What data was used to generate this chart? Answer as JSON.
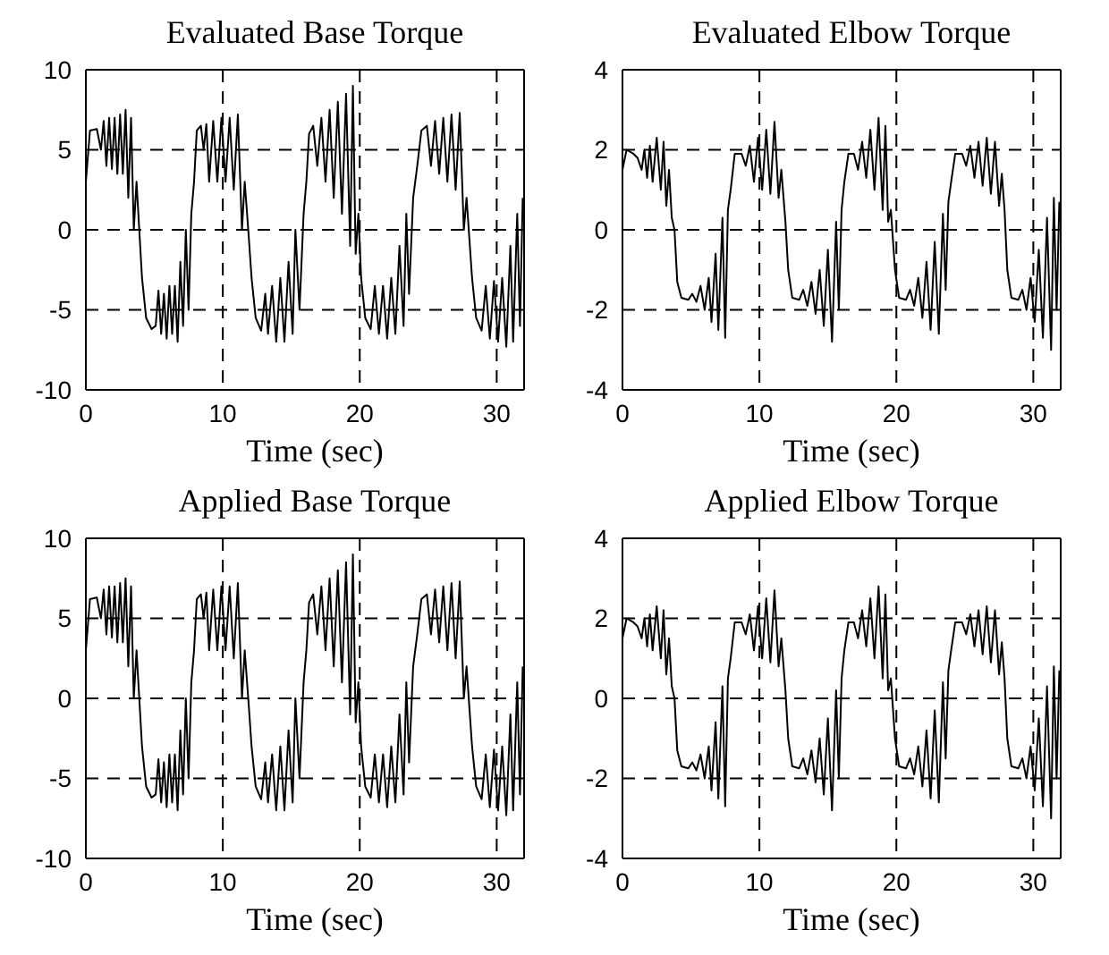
{
  "chart_data": [
    {
      "type": "line",
      "title": "Evaluated Base Torque",
      "xlabel": "Time (sec)",
      "color": "#000000",
      "marker": "none",
      "line_style": "solid",
      "grid": true,
      "xlim": [
        0,
        32
      ],
      "xticks": [
        0,
        10,
        20,
        30
      ],
      "ylim": [
        -10,
        10
      ],
      "yticks": [
        -10,
        -5,
        0,
        5,
        10
      ],
      "x": [
        0,
        0.3,
        0.8,
        1.1,
        1.3,
        1.5,
        1.7,
        1.9,
        2.1,
        2.3,
        2.5,
        2.7,
        2.9,
        3.1,
        3.3,
        3.5,
        3.7,
        3.9,
        4.1,
        4.4,
        4.8,
        5.1,
        5.3,
        5.5,
        5.7,
        5.9,
        6.1,
        6.3,
        6.5,
        6.7,
        6.9,
        7.1,
        7.3,
        7.5,
        7.7,
        7.9,
        8.1,
        8.4,
        8.6,
        8.8,
        9.0,
        9.3,
        9.6,
        9.9,
        10.2,
        10.5,
        10.8,
        11.1,
        11.4,
        11.6,
        11.9,
        12.1,
        12.4,
        12.8,
        13.1,
        13.3,
        13.6,
        13.9,
        14.2,
        14.5,
        14.8,
        15.1,
        15.3,
        15.6,
        15.9,
        16.1,
        16.3,
        16.6,
        16.9,
        17.2,
        17.5,
        17.8,
        18.1,
        18.4,
        18.7,
        19.0,
        19.3,
        19.5,
        19.7,
        19.9,
        20.1,
        20.4,
        20.8,
        21.1,
        21.4,
        21.7,
        22.0,
        22.3,
        22.6,
        22.9,
        23.2,
        23.4,
        23.6,
        23.9,
        24.2,
        24.5,
        24.9,
        25.2,
        25.5,
        25.8,
        26.1,
        26.4,
        26.7,
        27.0,
        27.3,
        27.6,
        27.8,
        28.0,
        28.2,
        28.5,
        28.9,
        29.2,
        29.5,
        29.8,
        30.1,
        30.4,
        30.7,
        31.0,
        31.2,
        31.5,
        31.7,
        31.9
      ],
      "values": [
        3,
        6.2,
        6.3,
        5,
        6.8,
        4,
        7,
        3.8,
        7,
        3.5,
        7.2,
        3.5,
        7.5,
        2,
        7,
        0,
        3,
        0,
        -3,
        -5.5,
        -6.2,
        -6,
        -3.8,
        -6.5,
        -4,
        -6.8,
        -3.5,
        -6.5,
        -3.5,
        -7,
        -2,
        -6,
        0,
        -5,
        1,
        3,
        6.2,
        6.5,
        5,
        6.6,
        3,
        6.8,
        3,
        7,
        3,
        7,
        2.5,
        7.2,
        0,
        3,
        -0.5,
        -3,
        -5.5,
        -6.3,
        -4,
        -6.5,
        -3.5,
        -7,
        -3,
        -7,
        -2,
        -6.5,
        0,
        -5,
        1,
        3,
        6,
        6.5,
        4,
        7,
        3,
        7.5,
        2,
        8,
        1,
        8.5,
        -1,
        9,
        -1.5,
        1,
        -3,
        -5.5,
        -6.2,
        -3.5,
        -6.5,
        -3.5,
        -6.8,
        -3,
        -6.5,
        -1,
        -6,
        1,
        -4,
        2,
        4,
        6.2,
        6.5,
        4,
        6.8,
        3.5,
        7,
        3,
        7.2,
        2.5,
        7.3,
        0,
        2,
        -0.5,
        -3,
        -5.5,
        -6.3,
        -3.5,
        -6.8,
        -3.2,
        -7,
        -3,
        -7.3,
        -1,
        -7,
        1,
        -6,
        2
      ]
    },
    {
      "type": "line",
      "title": "Evaluated Elbow Torque",
      "xlabel": "Time (sec)",
      "color": "#000000",
      "marker": "none",
      "line_style": "solid",
      "grid": true,
      "xlim": [
        0,
        32
      ],
      "xticks": [
        0,
        10,
        20,
        30
      ],
      "ylim": [
        -4,
        4
      ],
      "yticks": [
        -4,
        -2,
        0,
        2,
        4
      ],
      "x": [
        0,
        0.3,
        0.8,
        1.1,
        1.4,
        1.6,
        1.8,
        2.0,
        2.2,
        2.5,
        2.8,
        3.0,
        3.2,
        3.4,
        3.6,
        3.8,
        4.0,
        4.3,
        4.8,
        5.1,
        5.4,
        5.7,
        6.0,
        6.3,
        6.5,
        6.8,
        7.0,
        7.3,
        7.5,
        7.7,
        7.9,
        8.2,
        8.7,
        9.0,
        9.3,
        9.6,
        9.9,
        10.2,
        10.5,
        10.8,
        11.1,
        11.4,
        11.6,
        11.9,
        12.1,
        12.4,
        12.9,
        13.2,
        13.5,
        13.8,
        14.1,
        14.4,
        14.7,
        15.0,
        15.3,
        15.6,
        15.8,
        16.0,
        16.2,
        16.5,
        16.9,
        17.2,
        17.5,
        17.8,
        18.1,
        18.4,
        18.7,
        19.0,
        19.2,
        19.4,
        19.6,
        19.9,
        20.2,
        20.7,
        21.0,
        21.3,
        21.6,
        21.9,
        22.2,
        22.5,
        22.8,
        23.1,
        23.4,
        23.6,
        23.8,
        24.0,
        24.3,
        24.8,
        25.1,
        25.4,
        25.7,
        26.0,
        26.3,
        26.6,
        26.9,
        27.2,
        27.5,
        27.7,
        27.9,
        28.1,
        28.4,
        28.9,
        29.2,
        29.5,
        29.8,
        30.1,
        30.4,
        30.7,
        31.0,
        31.3,
        31.5,
        31.7,
        31.9
      ],
      "values": [
        1.5,
        2,
        1.9,
        1.8,
        1.5,
        2,
        1.3,
        2.1,
        1.2,
        2.3,
        1.0,
        2.2,
        0.6,
        1.5,
        0.3,
        0,
        -1.3,
        -1.7,
        -1.75,
        -1.6,
        -1.8,
        -1.4,
        -2,
        -1.2,
        -2.3,
        -0.6,
        -2.5,
        0.3,
        -2.7,
        0.5,
        1.0,
        1.9,
        1.9,
        1.6,
        2.1,
        1.2,
        2.3,
        1.0,
        2.5,
        0.9,
        2.7,
        0.8,
        1.5,
        0.2,
        -1,
        -1.7,
        -1.75,
        -1.5,
        -1.9,
        -1.3,
        -2.1,
        -1,
        -2.4,
        -0.5,
        -2.8,
        0.2,
        -2,
        0.5,
        1.2,
        1.9,
        1.9,
        1.5,
        2.2,
        1.3,
        2.5,
        1.0,
        2.8,
        0.5,
        2.6,
        0.2,
        0.5,
        -1,
        -1.7,
        -1.75,
        -1.5,
        -1.9,
        -1.2,
        -2.2,
        -0.8,
        -2.5,
        -0.3,
        -2.6,
        0.4,
        -1.5,
        0.7,
        1.2,
        1.9,
        1.9,
        1.6,
        2.1,
        1.3,
        2.2,
        1.1,
        2.3,
        0.9,
        2.2,
        0.6,
        1.4,
        0.5,
        -1,
        -1.7,
        -1.75,
        -1.5,
        -2,
        -1.2,
        -2.3,
        -0.5,
        -2.7,
        0.3,
        -3,
        0.8,
        -2,
        0.7
      ]
    },
    {
      "type": "line",
      "title": "Applied Base Torque",
      "xlabel": "Time (sec)",
      "color": "#000000",
      "marker": "none",
      "line_style": "solid",
      "grid": true,
      "xlim": [
        0,
        32
      ],
      "xticks": [
        0,
        10,
        20,
        30
      ],
      "ylim": [
        -10,
        10
      ],
      "yticks": [
        -10,
        -5,
        0,
        5,
        10
      ],
      "x": [
        0,
        0.3,
        0.8,
        1.1,
        1.3,
        1.5,
        1.7,
        1.9,
        2.1,
        2.3,
        2.5,
        2.7,
        2.9,
        3.1,
        3.3,
        3.5,
        3.7,
        3.9,
        4.1,
        4.4,
        4.8,
        5.1,
        5.3,
        5.5,
        5.7,
        5.9,
        6.1,
        6.3,
        6.5,
        6.7,
        6.9,
        7.1,
        7.3,
        7.5,
        7.7,
        7.9,
        8.1,
        8.4,
        8.6,
        8.8,
        9.0,
        9.3,
        9.6,
        9.9,
        10.2,
        10.5,
        10.8,
        11.1,
        11.4,
        11.6,
        11.9,
        12.1,
        12.4,
        12.8,
        13.1,
        13.3,
        13.6,
        13.9,
        14.2,
        14.5,
        14.8,
        15.1,
        15.3,
        15.6,
        15.9,
        16.1,
        16.3,
        16.6,
        16.9,
        17.2,
        17.5,
        17.8,
        18.1,
        18.4,
        18.7,
        19.0,
        19.3,
        19.5,
        19.7,
        19.9,
        20.1,
        20.4,
        20.8,
        21.1,
        21.4,
        21.7,
        22.0,
        22.3,
        22.6,
        22.9,
        23.2,
        23.4,
        23.6,
        23.9,
        24.2,
        24.5,
        24.9,
        25.2,
        25.5,
        25.8,
        26.1,
        26.4,
        26.7,
        27.0,
        27.3,
        27.6,
        27.8,
        28.0,
        28.2,
        28.5,
        28.9,
        29.2,
        29.5,
        29.8,
        30.1,
        30.4,
        30.7,
        31.0,
        31.2,
        31.5,
        31.7,
        31.9
      ],
      "values": [
        3,
        6.2,
        6.3,
        5,
        6.8,
        4,
        7,
        3.8,
        7,
        3.5,
        7.2,
        3.5,
        7.5,
        2,
        7,
        0,
        3,
        0,
        -3,
        -5.5,
        -6.2,
        -6,
        -3.8,
        -6.5,
        -4,
        -6.8,
        -3.5,
        -6.5,
        -3.5,
        -7,
        -2,
        -6,
        0,
        -5,
        1,
        3,
        6.2,
        6.5,
        5,
        6.6,
        3,
        6.8,
        3,
        7,
        3,
        7,
        2.5,
        7.2,
        0,
        3,
        -0.5,
        -3,
        -5.5,
        -6.3,
        -4,
        -6.5,
        -3.5,
        -7,
        -3,
        -7,
        -2,
        -6.5,
        0,
        -5,
        1,
        3,
        6,
        6.5,
        4,
        7,
        3,
        7.5,
        2,
        8,
        1,
        8.5,
        -1,
        9,
        -1.5,
        1,
        -3,
        -5.5,
        -6.2,
        -3.5,
        -6.5,
        -3.5,
        -6.8,
        -3,
        -6.5,
        -1,
        -6,
        1,
        -4,
        2,
        4,
        6.2,
        6.5,
        4,
        6.8,
        3.5,
        7,
        3,
        7.2,
        2.5,
        7.3,
        0,
        2,
        -0.5,
        -3,
        -5.5,
        -6.3,
        -3.5,
        -6.8,
        -3.2,
        -7,
        -3,
        -7.3,
        -1,
        -7,
        1,
        -6,
        2
      ]
    },
    {
      "type": "line",
      "title": "Applied Elbow Torque",
      "xlabel": "Time (sec)",
      "color": "#000000",
      "marker": "none",
      "line_style": "solid",
      "grid": true,
      "xlim": [
        0,
        32
      ],
      "xticks": [
        0,
        10,
        20,
        30
      ],
      "ylim": [
        -4,
        4
      ],
      "yticks": [
        -4,
        -2,
        0,
        2,
        4
      ],
      "x": [
        0,
        0.3,
        0.8,
        1.1,
        1.4,
        1.6,
        1.8,
        2.0,
        2.2,
        2.5,
        2.8,
        3.0,
        3.2,
        3.4,
        3.6,
        3.8,
        4.0,
        4.3,
        4.8,
        5.1,
        5.4,
        5.7,
        6.0,
        6.3,
        6.5,
        6.8,
        7.0,
        7.3,
        7.5,
        7.7,
        7.9,
        8.2,
        8.7,
        9.0,
        9.3,
        9.6,
        9.9,
        10.2,
        10.5,
        10.8,
        11.1,
        11.4,
        11.6,
        11.9,
        12.1,
        12.4,
        12.9,
        13.2,
        13.5,
        13.8,
        14.1,
        14.4,
        14.7,
        15.0,
        15.3,
        15.6,
        15.8,
        16.0,
        16.2,
        16.5,
        16.9,
        17.2,
        17.5,
        17.8,
        18.1,
        18.4,
        18.7,
        19.0,
        19.2,
        19.4,
        19.6,
        19.9,
        20.2,
        20.7,
        21.0,
        21.3,
        21.6,
        21.9,
        22.2,
        22.5,
        22.8,
        23.1,
        23.4,
        23.6,
        23.8,
        24.0,
        24.3,
        24.8,
        25.1,
        25.4,
        25.7,
        26.0,
        26.3,
        26.6,
        26.9,
        27.2,
        27.5,
        27.7,
        27.9,
        28.1,
        28.4,
        28.9,
        29.2,
        29.5,
        29.8,
        30.1,
        30.4,
        30.7,
        31.0,
        31.3,
        31.5,
        31.7,
        31.9
      ],
      "values": [
        1.5,
        2,
        1.9,
        1.8,
        1.5,
        2,
        1.3,
        2.1,
        1.2,
        2.3,
        1.0,
        2.2,
        0.6,
        1.5,
        0.3,
        0,
        -1.3,
        -1.7,
        -1.75,
        -1.6,
        -1.8,
        -1.4,
        -2,
        -1.2,
        -2.3,
        -0.6,
        -2.5,
        0.3,
        -2.7,
        0.5,
        1.0,
        1.9,
        1.9,
        1.6,
        2.1,
        1.2,
        2.3,
        1.0,
        2.5,
        0.9,
        2.7,
        0.8,
        1.5,
        0.2,
        -1,
        -1.7,
        -1.75,
        -1.5,
        -1.9,
        -1.3,
        -2.1,
        -1,
        -2.4,
        -0.5,
        -2.8,
        0.2,
        -2,
        0.5,
        1.2,
        1.9,
        1.9,
        1.5,
        2.2,
        1.3,
        2.5,
        1.0,
        2.8,
        0.5,
        2.6,
        0.2,
        0.5,
        -1,
        -1.7,
        -1.75,
        -1.5,
        -1.9,
        -1.2,
        -2.2,
        -0.8,
        -2.5,
        -0.3,
        -2.6,
        0.4,
        -1.5,
        0.7,
        1.2,
        1.9,
        1.9,
        1.6,
        2.1,
        1.3,
        2.2,
        1.1,
        2.3,
        0.9,
        2.2,
        0.6,
        1.4,
        0.5,
        -1,
        -1.7,
        -1.75,
        -1.5,
        -2,
        -1.2,
        -2.3,
        -0.5,
        -2.7,
        0.3,
        -3,
        0.8,
        -2,
        0.7
      ]
    }
  ]
}
